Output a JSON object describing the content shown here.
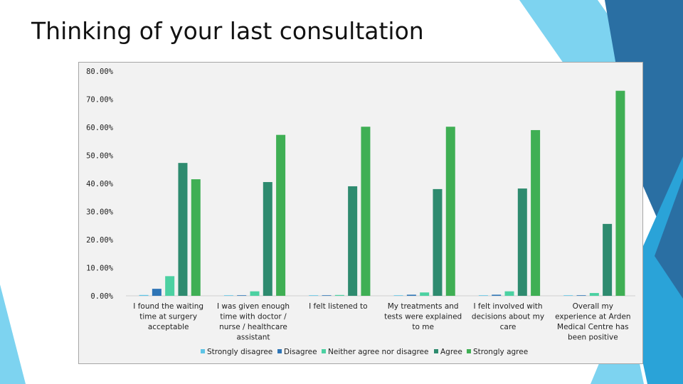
{
  "slide": {
    "title": "Thinking of your last consultation"
  },
  "colors": {
    "strongly_disagree": "#5ec4e6",
    "disagree": "#2e75b6",
    "neither": "#4cd1a2",
    "agree": "#2e8b6f",
    "strongly_agree": "#3faf54",
    "decor_light": "#7dd3f0",
    "decor_mid": "#2aa3d8",
    "decor_dark": "#2a6fa3"
  },
  "chart_data": {
    "type": "bar",
    "title": "",
    "xlabel": "",
    "ylabel": "",
    "ylim": [
      0,
      80
    ],
    "yticks": [
      "0.00%",
      "10.00%",
      "20.00%",
      "30.00%",
      "40.00%",
      "50.00%",
      "60.00%",
      "70.00%",
      "80.00%"
    ],
    "grid": false,
    "legend_position": "bottom",
    "categories": [
      [
        "I found the waiting",
        "time at surgery",
        "acceptable"
      ],
      [
        "I was given enough",
        "time with doctor /",
        "nurse / healthcare",
        "assistant"
      ],
      [
        "I felt listened to"
      ],
      [
        "My treatments and",
        "tests were explained",
        "to me"
      ],
      [
        "I felt involved with",
        "decisions about my",
        "care"
      ],
      [
        "Overall my",
        "experience at Arden",
        "Medical Centre has",
        "been positive"
      ]
    ],
    "series": [
      {
        "name": "Strongly disagree",
        "color_key": "strongly_disagree",
        "values": [
          0.3,
          0.0,
          0.0,
          0.0,
          0.0,
          0.0
        ]
      },
      {
        "name": "Disagree",
        "color_key": "disagree",
        "values": [
          2.5,
          0.0,
          0.0,
          0.4,
          0.4,
          0.0
        ]
      },
      {
        "name": "Neither agree nor disagree",
        "color_key": "neither",
        "values": [
          7.0,
          1.6,
          0.3,
          1.2,
          1.6,
          1.0
        ]
      },
      {
        "name": "Agree",
        "color_key": "agree",
        "values": [
          47.3,
          40.5,
          39.0,
          38.0,
          38.2,
          25.6
        ]
      },
      {
        "name": "Strongly agree",
        "color_key": "strongly_agree",
        "values": [
          41.5,
          57.3,
          60.2,
          60.2,
          59.0,
          73.0
        ]
      }
    ]
  }
}
